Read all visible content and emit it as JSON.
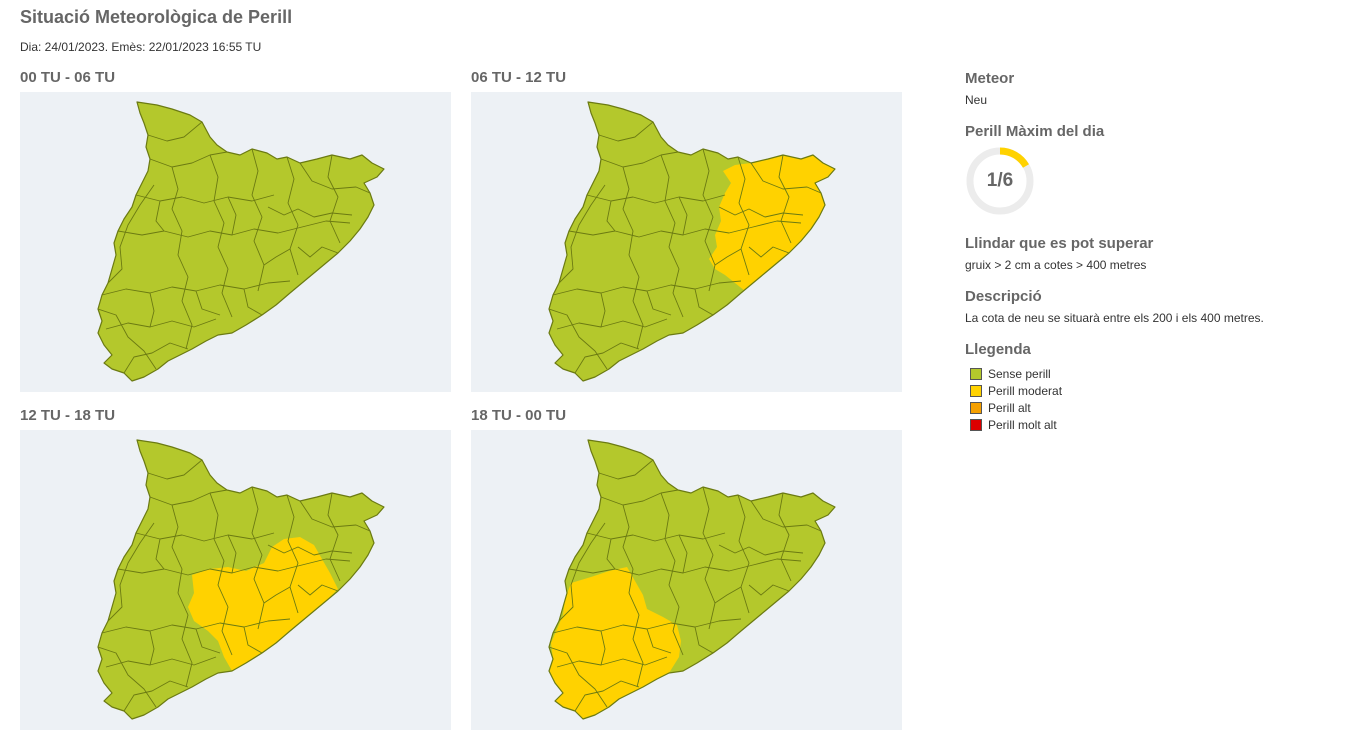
{
  "header": {
    "title": "Situació Meteorològica de Perill",
    "subtitle": "Dia: 24/01/2023. Emès: 22/01/2023 16:55 TU"
  },
  "colors": {
    "sense_perill": "#b4c82c",
    "perill_moderat": "#ffd200",
    "perill_alt": "#f5a000",
    "perill_molt_alt": "#dc0000",
    "border": "#6b7a12",
    "map_bg": "#edf1f5"
  },
  "maps": [
    {
      "title": "00 TU - 06 TU",
      "moderat_zone": "none"
    },
    {
      "title": "06 TU - 12 TU",
      "moderat_zone": "northeast"
    },
    {
      "title": "12 TU - 18 TU",
      "moderat_zone": "central"
    },
    {
      "title": "18 TU - 00 TU",
      "moderat_zone": "southwest"
    }
  ],
  "side": {
    "meteor_title": "Meteor",
    "meteor_value": "Neu",
    "perill_title": "Perill Màxim del dia",
    "perill_value": "1/6",
    "perill_level": 1,
    "perill_max": 6,
    "llindar_title": "Llindar que es pot superar",
    "llindar_value": "gruix > 2 cm a cotes > 400 metres",
    "desc_title": "Descripció",
    "desc_value": "La cota de neu se situarà entre els 200 i els 400 metres.",
    "legend_title": "Llegenda",
    "legend": [
      {
        "label": "Sense perill",
        "color": "#b4c82c"
      },
      {
        "label": "Perill moderat",
        "color": "#ffd200"
      },
      {
        "label": "Perill alt",
        "color": "#f5a000"
      },
      {
        "label": "Perill molt alt",
        "color": "#dc0000"
      }
    ]
  }
}
